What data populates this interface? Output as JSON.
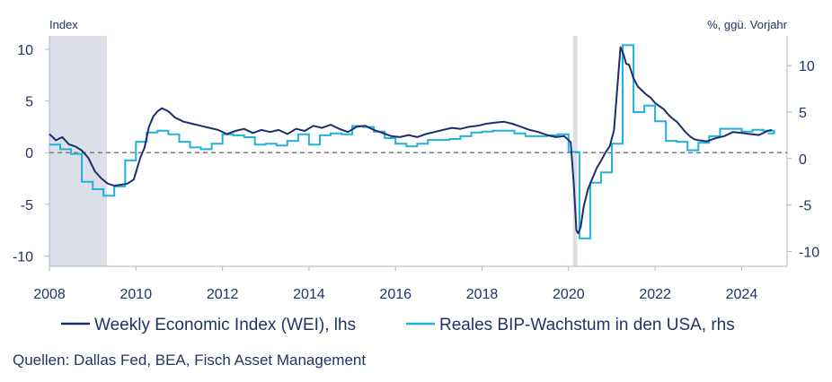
{
  "chart_data": {
    "type": "line",
    "y_left_label": "Index",
    "y_right_label": "%, ggü. Vorjahr",
    "ylim_left": [
      -11,
      11.3
    ],
    "ylim_right": [
      -11.6,
      13.2
    ],
    "xlim": [
      2008,
      2025.05
    ],
    "left_ticks": [
      "10",
      "5",
      "0",
      "-5",
      "-10"
    ],
    "left_tick_values": [
      10,
      5,
      0,
      -5,
      -10
    ],
    "right_ticks": [
      "10",
      "5",
      "0",
      "-5",
      "-10"
    ],
    "right_tick_values": [
      10,
      5,
      0,
      -5,
      -10
    ],
    "x_ticks": [
      "2008",
      "2010",
      "2012",
      "2014",
      "2016",
      "2018",
      "2020",
      "2022",
      "2024"
    ],
    "x_tick_values": [
      2008,
      2010,
      2012,
      2014,
      2016,
      2018,
      2020,
      2022,
      2024
    ],
    "recessions": [
      [
        2008.0,
        2009.33
      ],
      [
        2020.1,
        2020.2
      ]
    ],
    "zero_line": true,
    "colors": {
      "wei": "#1b2f6e",
      "gdp": "#22b0dc",
      "recession": "#dcdfe8",
      "zero": "#7a7a7a",
      "axis": "#a9b6c8"
    },
    "series": [
      {
        "name": "Weekly Economic Index (WEI), lhs",
        "axis": "left",
        "x": [
          2008.0,
          2008.15,
          2008.3,
          2008.45,
          2008.6,
          2008.75,
          2008.9,
          2009.05,
          2009.2,
          2009.35,
          2009.5,
          2009.65,
          2009.8,
          2009.95,
          2010.1,
          2010.2,
          2010.3,
          2010.4,
          2010.5,
          2010.6,
          2010.75,
          2010.9,
          2011.1,
          2011.3,
          2011.5,
          2011.7,
          2011.9,
          2012.1,
          2012.3,
          2012.5,
          2012.7,
          2012.9,
          2013.1,
          2013.3,
          2013.5,
          2013.7,
          2013.9,
          2014.1,
          2014.3,
          2014.5,
          2014.7,
          2014.9,
          2015.1,
          2015.3,
          2015.5,
          2015.7,
          2015.9,
          2016.1,
          2016.3,
          2016.5,
          2016.7,
          2016.9,
          2017.1,
          2017.3,
          2017.5,
          2017.7,
          2017.9,
          2018.1,
          2018.3,
          2018.5,
          2018.7,
          2018.9,
          2019.1,
          2019.3,
          2019.5,
          2019.7,
          2019.9,
          2020.05,
          2020.12,
          2020.18,
          2020.22,
          2020.28,
          2020.35,
          2020.45,
          2020.55,
          2020.65,
          2020.75,
          2020.85,
          2020.95,
          2021.05,
          2021.12,
          2021.2,
          2021.27,
          2021.33,
          2021.4,
          2021.5,
          2021.6,
          2021.7,
          2021.8,
          2021.9,
          2022.0,
          2022.1,
          2022.2,
          2022.3,
          2022.4,
          2022.5,
          2022.6,
          2022.7,
          2022.8,
          2022.9,
          2023.0,
          2023.2,
          2023.4,
          2023.6,
          2023.8,
          2024.0,
          2024.2,
          2024.4,
          2024.6,
          2024.7
        ],
        "values": [
          1.8,
          1.2,
          1.5,
          0.8,
          0.6,
          0.2,
          -0.5,
          -1.8,
          -2.5,
          -3.0,
          -3.2,
          -3.1,
          -3.0,
          -2.6,
          -0.5,
          0.5,
          2.5,
          3.5,
          4.0,
          4.3,
          4.0,
          3.4,
          3.0,
          2.8,
          2.6,
          2.4,
          2.2,
          1.8,
          2.1,
          2.3,
          1.9,
          2.2,
          2.0,
          2.2,
          1.8,
          2.3,
          2.1,
          2.6,
          2.4,
          2.7,
          2.3,
          2.0,
          2.5,
          2.6,
          2.2,
          1.9,
          1.6,
          1.5,
          1.7,
          1.5,
          1.8,
          2.0,
          2.2,
          2.4,
          2.3,
          2.5,
          2.6,
          2.8,
          2.9,
          3.0,
          2.8,
          2.5,
          2.2,
          2.0,
          1.7,
          1.5,
          1.6,
          1.0,
          -3.0,
          -7.5,
          -7.8,
          -7.2,
          -5.2,
          -3.5,
          -2.5,
          -1.5,
          -0.8,
          0.0,
          0.6,
          2.2,
          6.0,
          10.2,
          9.5,
          8.6,
          8.5,
          7.2,
          6.4,
          6.0,
          5.6,
          5.3,
          4.8,
          4.5,
          4.2,
          3.7,
          3.3,
          3.0,
          2.5,
          2.0,
          1.6,
          1.3,
          1.2,
          1.1,
          1.4,
          1.6,
          2.0,
          1.9,
          1.8,
          1.7,
          2.1,
          2.2
        ]
      },
      {
        "name": "Reales BIP-Wachstum in den USA, rhs",
        "axis": "right",
        "x": [
          2008.0,
          2008.25,
          2008.5,
          2008.75,
          2009.0,
          2009.25,
          2009.5,
          2009.75,
          2010.0,
          2010.25,
          2010.5,
          2010.75,
          2011.0,
          2011.25,
          2011.5,
          2011.75,
          2012.0,
          2012.25,
          2012.5,
          2012.75,
          2013.0,
          2013.25,
          2013.5,
          2013.75,
          2014.0,
          2014.25,
          2014.5,
          2014.75,
          2015.0,
          2015.25,
          2015.5,
          2015.75,
          2016.0,
          2016.25,
          2016.5,
          2016.75,
          2017.0,
          2017.25,
          2017.5,
          2017.75,
          2018.0,
          2018.25,
          2018.5,
          2018.75,
          2019.0,
          2019.25,
          2019.5,
          2019.75,
          2020.0,
          2020.25,
          2020.5,
          2020.75,
          2021.0,
          2021.25,
          2021.5,
          2021.75,
          2022.0,
          2022.25,
          2022.5,
          2022.75,
          2023.0,
          2023.25,
          2023.5,
          2023.75,
          2024.0,
          2024.25,
          2024.5,
          2024.75
        ],
        "values": [
          1.5,
          1.0,
          0.5,
          -2.5,
          -3.3,
          -4.0,
          -3.0,
          -0.2,
          1.8,
          2.8,
          3.0,
          2.6,
          1.8,
          1.2,
          1.0,
          1.6,
          2.6,
          2.5,
          2.3,
          1.5,
          1.6,
          1.4,
          1.9,
          2.6,
          1.5,
          2.5,
          2.7,
          2.6,
          3.5,
          3.4,
          2.9,
          2.2,
          1.6,
          1.3,
          1.6,
          2.0,
          2.0,
          2.1,
          2.4,
          2.8,
          2.9,
          3.0,
          3.0,
          2.7,
          2.4,
          2.4,
          2.5,
          2.6,
          0.7,
          -8.6,
          -2.6,
          -1.5,
          1.6,
          12.2,
          5.0,
          5.7,
          4.0,
          1.9,
          1.8,
          0.9,
          1.7,
          2.4,
          3.2,
          3.2,
          2.9,
          3.1,
          3.0,
          2.7
        ]
      }
    ],
    "legend_position": "bottom"
  },
  "source_text": "Quellen: Dallas Fed, BEA, Fisch Asset Management"
}
